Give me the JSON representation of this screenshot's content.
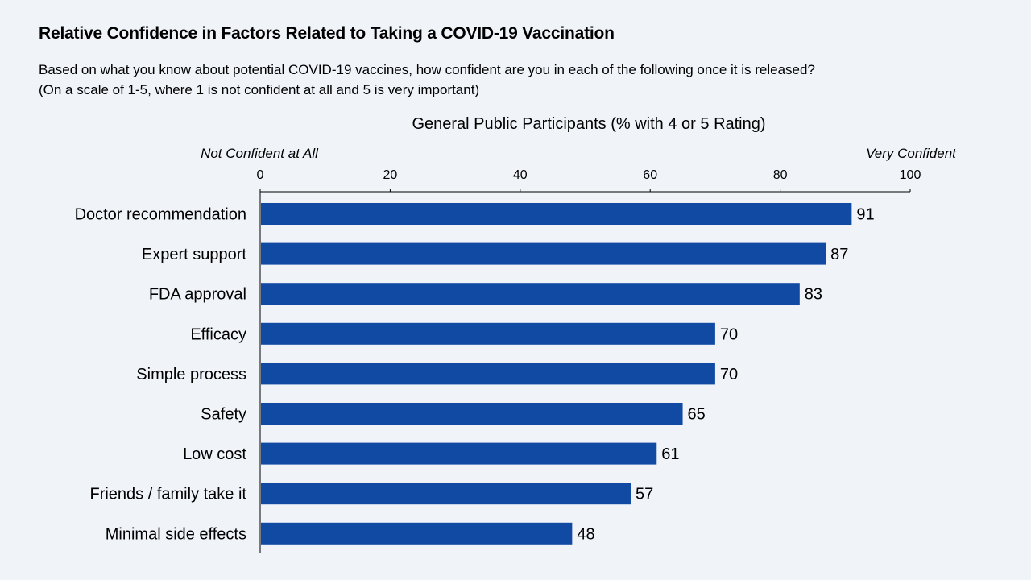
{
  "title": "Relative Confidence in Factors Related to Taking a COVID-19 Vaccination",
  "subtitle_lines": [
    "Based on what you know about potential COVID-19 vaccines, how confident are you in each of the following once it is released?",
    "(On a scale of 1-5, where 1 is not confident at all and 5 is very important)"
  ],
  "colors": {
    "bar": "#114aa3",
    "axis": "#000000",
    "background": "#f0f4f9"
  },
  "chart_data": {
    "type": "bar",
    "orientation": "horizontal",
    "title": "General Public Participants (% with 4 or 5 Rating)",
    "axis_end_labels": {
      "left": "Not Confident at All",
      "right": "Very Confident"
    },
    "xlim": [
      0,
      100
    ],
    "ticks": [
      0,
      20,
      40,
      60,
      80,
      100
    ],
    "categories": [
      "Doctor recommendation",
      "Expert support",
      "FDA approval",
      "Efficacy",
      "Simple process",
      "Safety",
      "Low cost",
      "Friends / family take it",
      "Minimal side effects"
    ],
    "values": [
      91,
      87,
      83,
      70,
      70,
      65,
      61,
      57,
      48
    ],
    "legend": "none",
    "grid": false
  }
}
